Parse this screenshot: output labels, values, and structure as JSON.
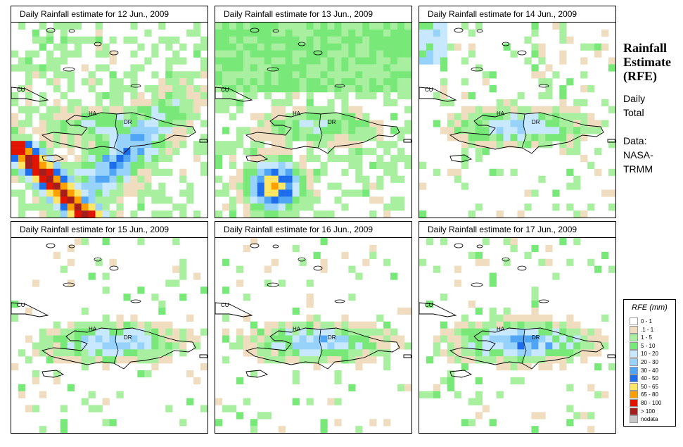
{
  "panels": [
    {
      "title": "Daily Rainfall estimate for  12 Jun., 2009"
    },
    {
      "title": "Daily Rainfall estimate for  13 Jun., 2009"
    },
    {
      "title": "Daily Rainfall estimate for  14 Jun., 2009"
    },
    {
      "title": "Daily Rainfall estimate for  15 Jun., 2009"
    },
    {
      "title": "Daily Rainfall estimate for  16 Jun., 2009"
    },
    {
      "title": "Daily Rainfall estimate for  17 Jun., 2009"
    }
  ],
  "country_labels": {
    "cuba": "CU",
    "haiti": "HA",
    "dominican_republic": "DR"
  },
  "side": {
    "title_line1": "Rainfall",
    "title_line2": "Estimate",
    "title_line3": "(RFE)",
    "sub1": "Daily",
    "sub2": "Total",
    "data1": "Data:",
    "data2": "NASA-",
    "data3": "TRMM"
  },
  "legend": {
    "title": "RFE (mm)",
    "items": [
      {
        "label": "0 - 1",
        "color": "#ffffff"
      },
      {
        "label": ".1 - 1",
        "color": "#f0dcbe"
      },
      {
        "label": "1 - 5",
        "color": "#a8f0a0"
      },
      {
        "label": "5 - 10",
        "color": "#78e878"
      },
      {
        "label": "10 - 20",
        "color": "#c8e8ff"
      },
      {
        "label": "20 - 30",
        "color": "#96d2fa"
      },
      {
        "label": "30 - 40",
        "color": "#50a5f5"
      },
      {
        "label": "40 - 50",
        "color": "#1e6eeb"
      },
      {
        "label": "50 - 65",
        "color": "#ffe664"
      },
      {
        "label": "65 - 80",
        "color": "#ffa000"
      },
      {
        "label": "80 - 100",
        "color": "#e11400"
      },
      {
        "label": "> 100",
        "color": "#a51e1e"
      },
      {
        "label": "nodata",
        "color": "#c8c8c8"
      }
    ]
  }
}
